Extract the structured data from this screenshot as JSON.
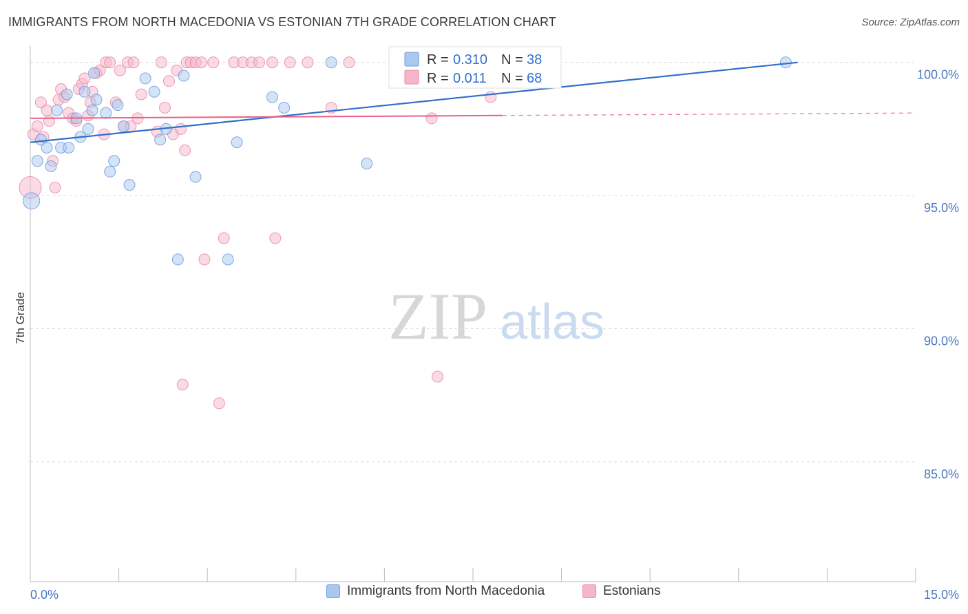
{
  "title": "IMMIGRANTS FROM NORTH MACEDONIA VS ESTONIAN 7TH GRADE CORRELATION CHART",
  "source": "Source: ZipAtlas.com",
  "watermark": {
    "zip": "ZIP",
    "atlas": "atlas"
  },
  "legend_top": [
    {
      "r_label": "R = ",
      "r_value": "0.310",
      "n_label": "N = ",
      "n_value": "38"
    },
    {
      "r_label": "R = ",
      "r_value": "0.011",
      "n_label": "N = ",
      "n_value": "68"
    }
  ],
  "legend_bottom": [
    "Immigrants from North Macedonia",
    "Estonians"
  ],
  "colors": {
    "blue_fill": "#a9c7ef",
    "blue_stroke": "#6b9bd8",
    "blue_line": "#2f6fcc",
    "pink_fill": "#f6b6c9",
    "pink_stroke": "#e98aa8",
    "pink_line": "#e8608a",
    "tick_text": "#4a78c2",
    "grid": "#dddddd"
  },
  "chart_data": {
    "type": "scatter",
    "title": "IMMIGRANTS FROM NORTH MACEDONIA VS ESTONIAN 7TH GRADE CORRELATION CHART",
    "xlabel": "",
    "ylabel": "7th Grade",
    "xlim": [
      0,
      15
    ],
    "ylim": [
      80.5,
      101.0
    ],
    "x_tick_labels": [
      "0.0%",
      "15.0%"
    ],
    "y_ticks": [
      100,
      95,
      90,
      85
    ],
    "y_tick_labels": [
      "100.0%",
      "95.0%",
      "90.0%",
      "85.0%"
    ],
    "grid": true,
    "legend_position": "top-center",
    "series": [
      {
        "name": "Immigrants from North Macedonia",
        "color": "#a9c7ef",
        "r": 0.31,
        "n": 38,
        "trend": {
          "x": [
            0.0,
            13.0
          ],
          "y": [
            97.0,
            100.0
          ],
          "style": "solid"
        },
        "points": [
          {
            "x": 0.02,
            "y": 94.8,
            "s": 12
          },
          {
            "x": 0.12,
            "y": 96.3,
            "s": 8
          },
          {
            "x": 0.18,
            "y": 97.1,
            "s": 8
          },
          {
            "x": 0.28,
            "y": 96.8,
            "s": 8
          },
          {
            "x": 0.35,
            "y": 96.1,
            "s": 8
          },
          {
            "x": 0.45,
            "y": 98.2,
            "s": 8
          },
          {
            "x": 0.52,
            "y": 96.8,
            "s": 8
          },
          {
            "x": 0.62,
            "y": 98.8,
            "s": 8
          },
          {
            "x": 0.65,
            "y": 96.8,
            "s": 8
          },
          {
            "x": 0.78,
            "y": 97.9,
            "s": 8
          },
          {
            "x": 0.85,
            "y": 97.2,
            "s": 8
          },
          {
            "x": 0.92,
            "y": 98.9,
            "s": 8
          },
          {
            "x": 0.98,
            "y": 97.5,
            "s": 8
          },
          {
            "x": 1.05,
            "y": 98.2,
            "s": 8
          },
          {
            "x": 1.12,
            "y": 98.6,
            "s": 8
          },
          {
            "x": 1.28,
            "y": 98.1,
            "s": 8
          },
          {
            "x": 1.35,
            "y": 95.9,
            "s": 8
          },
          {
            "x": 1.42,
            "y": 96.3,
            "s": 8
          },
          {
            "x": 1.48,
            "y": 98.4,
            "s": 8
          },
          {
            "x": 1.58,
            "y": 97.6,
            "s": 8
          },
          {
            "x": 1.68,
            "y": 95.4,
            "s": 8
          },
          {
            "x": 1.95,
            "y": 99.4,
            "s": 8
          },
          {
            "x": 2.1,
            "y": 98.9,
            "s": 8
          },
          {
            "x": 2.2,
            "y": 97.1,
            "s": 8
          },
          {
            "x": 2.3,
            "y": 97.5,
            "s": 8
          },
          {
            "x": 2.5,
            "y": 92.6,
            "s": 8
          },
          {
            "x": 2.6,
            "y": 99.5,
            "s": 8
          },
          {
            "x": 2.8,
            "y": 95.7,
            "s": 8
          },
          {
            "x": 3.35,
            "y": 92.6,
            "s": 8
          },
          {
            "x": 3.5,
            "y": 97.0,
            "s": 8
          },
          {
            "x": 4.1,
            "y": 98.7,
            "s": 8
          },
          {
            "x": 4.3,
            "y": 98.3,
            "s": 8
          },
          {
            "x": 5.1,
            "y": 100.0,
            "s": 8
          },
          {
            "x": 5.7,
            "y": 96.2,
            "s": 8
          },
          {
            "x": 7.8,
            "y": 100.0,
            "s": 8
          },
          {
            "x": 8.1,
            "y": 100.0,
            "s": 8
          },
          {
            "x": 1.08,
            "y": 99.6,
            "s": 8
          },
          {
            "x": 12.8,
            "y": 100.0,
            "s": 8
          }
        ]
      },
      {
        "name": "Estonians",
        "color": "#f6b6c9",
        "r": 0.011,
        "n": 68,
        "trend": {
          "x": [
            0.0,
            15.0
          ],
          "y": [
            97.9,
            98.1
          ],
          "style": "solid-then-dashed",
          "solid_until": 8.0
        },
        "points": [
          {
            "x": 0.0,
            "y": 95.3,
            "s": 16
          },
          {
            "x": 0.05,
            "y": 97.3,
            "s": 8
          },
          {
            "x": 0.12,
            "y": 97.6,
            "s": 8
          },
          {
            "x": 0.18,
            "y": 98.5,
            "s": 8
          },
          {
            "x": 0.22,
            "y": 97.2,
            "s": 8
          },
          {
            "x": 0.28,
            "y": 98.2,
            "s": 8
          },
          {
            "x": 0.32,
            "y": 97.8,
            "s": 8
          },
          {
            "x": 0.38,
            "y": 96.3,
            "s": 8
          },
          {
            "x": 0.42,
            "y": 95.3,
            "s": 8
          },
          {
            "x": 0.48,
            "y": 98.6,
            "s": 8
          },
          {
            "x": 0.52,
            "y": 99.0,
            "s": 8
          },
          {
            "x": 0.58,
            "y": 98.7,
            "s": 8
          },
          {
            "x": 0.65,
            "y": 98.1,
            "s": 8
          },
          {
            "x": 0.72,
            "y": 97.9,
            "s": 8
          },
          {
            "x": 0.78,
            "y": 97.8,
            "s": 8
          },
          {
            "x": 0.82,
            "y": 99.0,
            "s": 8
          },
          {
            "x": 0.88,
            "y": 99.2,
            "s": 8
          },
          {
            "x": 0.92,
            "y": 99.4,
            "s": 8
          },
          {
            "x": 0.98,
            "y": 98.0,
            "s": 8
          },
          {
            "x": 1.02,
            "y": 98.5,
            "s": 8
          },
          {
            "x": 1.05,
            "y": 98.9,
            "s": 8
          },
          {
            "x": 1.12,
            "y": 99.6,
            "s": 8
          },
          {
            "x": 1.18,
            "y": 99.7,
            "s": 8
          },
          {
            "x": 1.25,
            "y": 97.3,
            "s": 8
          },
          {
            "x": 1.28,
            "y": 100.0,
            "s": 8
          },
          {
            "x": 1.35,
            "y": 100.0,
            "s": 8
          },
          {
            "x": 1.45,
            "y": 98.5,
            "s": 8
          },
          {
            "x": 1.52,
            "y": 99.7,
            "s": 8
          },
          {
            "x": 1.58,
            "y": 97.6,
            "s": 8
          },
          {
            "x": 1.65,
            "y": 100.0,
            "s": 8
          },
          {
            "x": 1.7,
            "y": 97.6,
            "s": 8
          },
          {
            "x": 1.75,
            "y": 100.0,
            "s": 8
          },
          {
            "x": 1.82,
            "y": 97.9,
            "s": 8
          },
          {
            "x": 1.88,
            "y": 98.8,
            "s": 8
          },
          {
            "x": 2.15,
            "y": 97.4,
            "s": 8
          },
          {
            "x": 2.22,
            "y": 100.0,
            "s": 8
          },
          {
            "x": 2.28,
            "y": 98.3,
            "s": 8
          },
          {
            "x": 2.35,
            "y": 99.3,
            "s": 8
          },
          {
            "x": 2.42,
            "y": 97.3,
            "s": 8
          },
          {
            "x": 2.48,
            "y": 99.7,
            "s": 8
          },
          {
            "x": 2.55,
            "y": 97.5,
            "s": 8
          },
          {
            "x": 2.65,
            "y": 100.0,
            "s": 8
          },
          {
            "x": 2.72,
            "y": 100.0,
            "s": 8
          },
          {
            "x": 2.8,
            "y": 100.0,
            "s": 8
          },
          {
            "x": 2.9,
            "y": 100.0,
            "s": 8
          },
          {
            "x": 2.58,
            "y": 87.9,
            "s": 8
          },
          {
            "x": 2.62,
            "y": 96.7,
            "s": 8
          },
          {
            "x": 2.95,
            "y": 92.6,
            "s": 8
          },
          {
            "x": 3.2,
            "y": 87.2,
            "s": 8
          },
          {
            "x": 3.28,
            "y": 93.4,
            "s": 8
          },
          {
            "x": 3.1,
            "y": 100.0,
            "s": 8
          },
          {
            "x": 3.45,
            "y": 100.0,
            "s": 8
          },
          {
            "x": 3.6,
            "y": 100.0,
            "s": 8
          },
          {
            "x": 3.75,
            "y": 100.0,
            "s": 8
          },
          {
            "x": 3.88,
            "y": 100.0,
            "s": 8
          },
          {
            "x": 4.1,
            "y": 100.0,
            "s": 8
          },
          {
            "x": 4.15,
            "y": 93.4,
            "s": 8
          },
          {
            "x": 4.4,
            "y": 100.0,
            "s": 8
          },
          {
            "x": 4.7,
            "y": 100.0,
            "s": 8
          },
          {
            "x": 5.1,
            "y": 98.3,
            "s": 8
          },
          {
            "x": 5.4,
            "y": 100.0,
            "s": 8
          },
          {
            "x": 6.5,
            "y": 100.0,
            "s": 8
          },
          {
            "x": 6.8,
            "y": 97.9,
            "s": 8
          },
          {
            "x": 6.9,
            "y": 88.2,
            "s": 8
          },
          {
            "x": 7.1,
            "y": 99.5,
            "s": 8
          },
          {
            "x": 7.4,
            "y": 100.0,
            "s": 8
          },
          {
            "x": 7.8,
            "y": 98.7,
            "s": 8
          },
          {
            "x": 8.6,
            "y": 100.0,
            "s": 8
          }
        ]
      }
    ]
  }
}
